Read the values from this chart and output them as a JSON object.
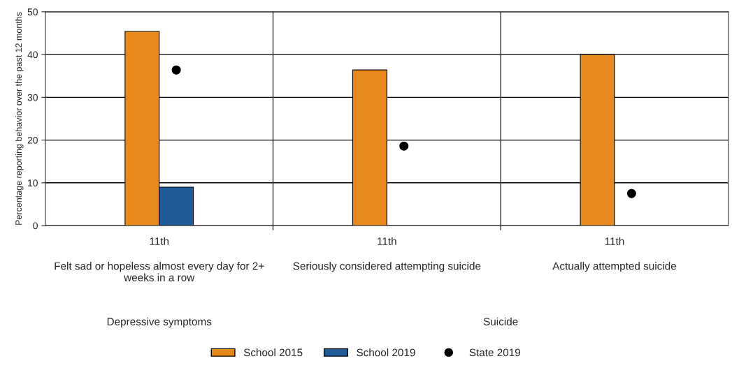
{
  "chart_data": {
    "type": "bar",
    "categories": [
      "11th",
      "11th",
      "11th"
    ],
    "ylabel": "Percentage reporting behavior over the past 12 months",
    "series": [
      {
        "name": "School 2015",
        "color": "#e8891d",
        "values": [
          45.4,
          36.4,
          40.0
        ]
      },
      {
        "name": "School 2019",
        "color": "#1f5c99",
        "values": [
          9.0,
          null,
          null
        ]
      },
      {
        "name": "State 2019",
        "type": "scatter",
        "color": "#000000",
        "values": [
          36.4,
          18.6,
          7.5
        ]
      }
    ],
    "annotations": [
      "Felt sad or hopeless almost every day for 2+ weeks in a row",
      "Seriously considered attempting suicide",
      "Actually attempted suicide",
      "Depressive symptoms",
      "Suicide"
    ],
    "ylim": [
      0,
      50
    ],
    "yticks": [
      0,
      10,
      20,
      30,
      40,
      50
    ],
    "grid": "y",
    "legend": "bottom",
    "marker": "circle"
  }
}
